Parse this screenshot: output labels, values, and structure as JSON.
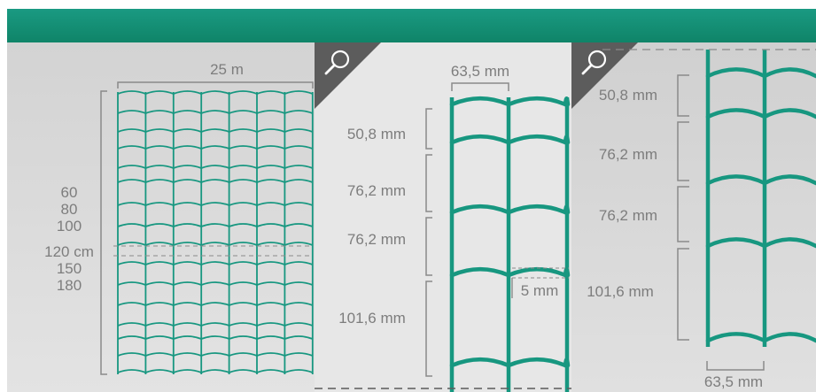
{
  "overview": {
    "width_label": "25 m",
    "height_labels": [
      "60",
      "80",
      "100",
      "120 cm",
      "150",
      "180"
    ]
  },
  "detail_center": {
    "width_label": "63,5 mm",
    "spacing_labels": [
      "50,8 mm",
      "76,2 mm",
      "76,2 mm",
      "101,6 mm"
    ],
    "wire_label": "5 mm"
  },
  "detail_right": {
    "spacing_labels": [
      "50,8 mm",
      "76,2 mm",
      "76,2 mm",
      "101,6 mm"
    ],
    "width_label": "63,5 mm"
  },
  "icons": [
    "magnifier-icon",
    "magnifier-icon"
  ],
  "colors": {
    "header": "#15957a",
    "mesh": "#179780",
    "dimension_lines": "#8a8a8a",
    "text": "#7d7d7d",
    "panel_left": "#d8d8d8",
    "panel_center": "#e6e6e6",
    "panel_right": "#d9d9d9"
  }
}
